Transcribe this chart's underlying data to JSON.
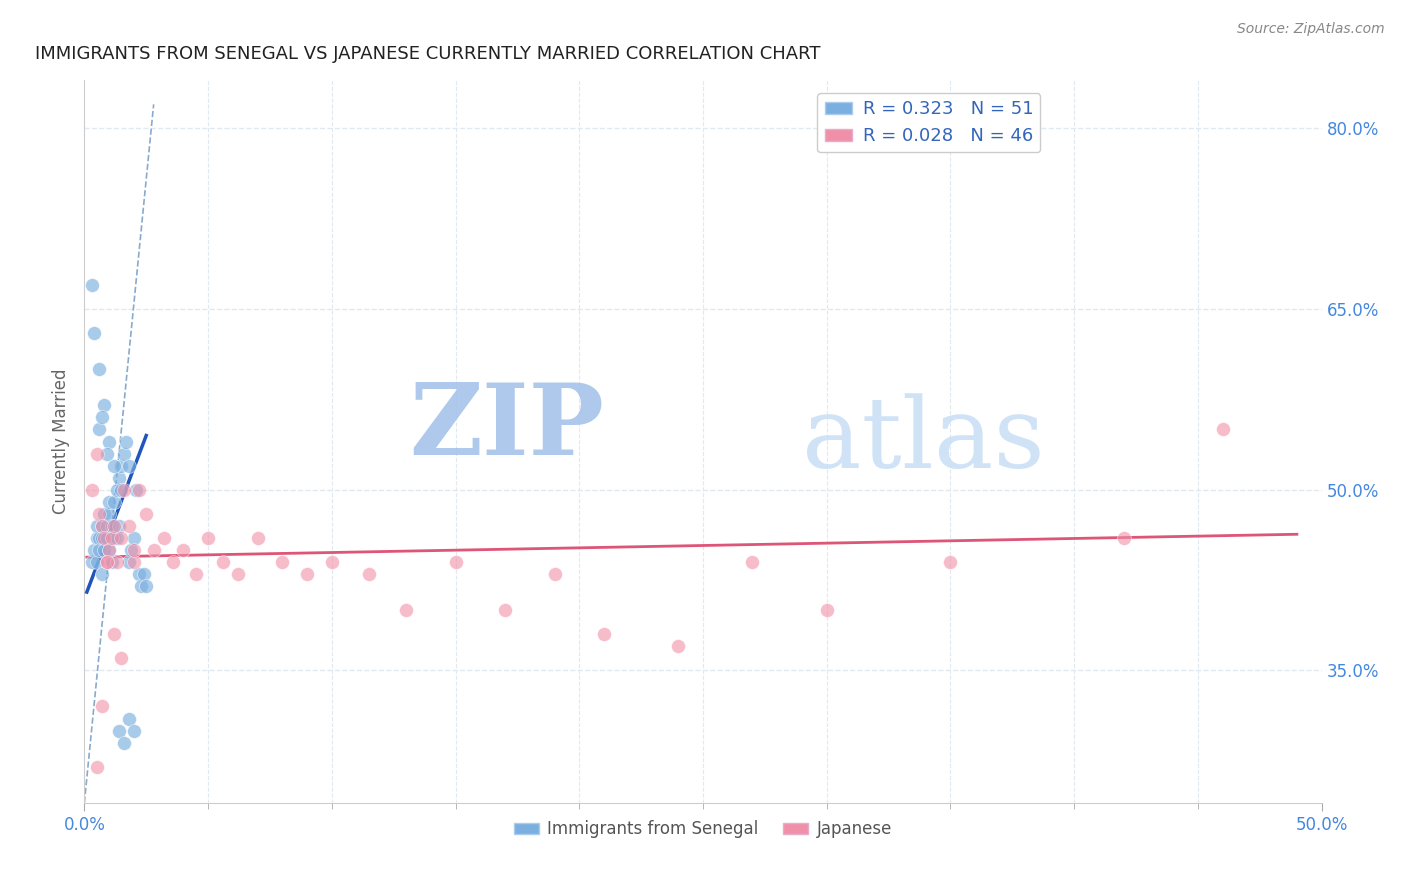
{
  "title": "IMMIGRANTS FROM SENEGAL VS JAPANESE CURRENTLY MARRIED CORRELATION CHART",
  "source_text": "Source: ZipAtlas.com",
  "ylabel": "Currently Married",
  "xlim": [
    0.0,
    0.5
  ],
  "ylim": [
    0.24,
    0.84
  ],
  "xticks_minor": [
    0.05,
    0.1,
    0.15,
    0.2,
    0.25,
    0.3,
    0.35,
    0.4,
    0.45
  ],
  "xticks_labeled": [
    0.0,
    0.5
  ],
  "xticklabels": [
    "0.0%",
    "50.0%"
  ],
  "yticks_right": [
    0.35,
    0.5,
    0.65,
    0.8
  ],
  "yticklabels_right": [
    "35.0%",
    "50.0%",
    "65.0%",
    "80.0%"
  ],
  "legend_r1": "R = 0.323   N = 51",
  "legend_r2": "R = 0.028   N = 46",
  "watermark_zip": "ZIP",
  "watermark_atlas": "atlas",
  "watermark_color": "#c8dff5",
  "blue_scatter_x": [
    0.003,
    0.004,
    0.005,
    0.005,
    0.005,
    0.006,
    0.006,
    0.007,
    0.007,
    0.007,
    0.008,
    0.008,
    0.009,
    0.009,
    0.01,
    0.01,
    0.01,
    0.011,
    0.011,
    0.012,
    0.012,
    0.013,
    0.013,
    0.014,
    0.014,
    0.015,
    0.015,
    0.016,
    0.017,
    0.018,
    0.018,
    0.019,
    0.02,
    0.021,
    0.022,
    0.023,
    0.024,
    0.025,
    0.003,
    0.004,
    0.006,
    0.008,
    0.01,
    0.012,
    0.014,
    0.016,
    0.018,
    0.02,
    0.006,
    0.007,
    0.009
  ],
  "blue_scatter_y": [
    0.44,
    0.45,
    0.46,
    0.47,
    0.44,
    0.46,
    0.45,
    0.47,
    0.43,
    0.46,
    0.45,
    0.48,
    0.46,
    0.47,
    0.48,
    0.49,
    0.45,
    0.47,
    0.44,
    0.46,
    0.49,
    0.46,
    0.5,
    0.47,
    0.51,
    0.5,
    0.52,
    0.53,
    0.54,
    0.52,
    0.44,
    0.45,
    0.46,
    0.5,
    0.43,
    0.42,
    0.43,
    0.42,
    0.67,
    0.63,
    0.6,
    0.57,
    0.54,
    0.52,
    0.3,
    0.29,
    0.31,
    0.3,
    0.55,
    0.56,
    0.53
  ],
  "pink_scatter_x": [
    0.003,
    0.005,
    0.006,
    0.007,
    0.008,
    0.009,
    0.01,
    0.011,
    0.012,
    0.013,
    0.015,
    0.016,
    0.018,
    0.02,
    0.022,
    0.025,
    0.028,
    0.032,
    0.036,
    0.04,
    0.045,
    0.05,
    0.056,
    0.062,
    0.07,
    0.08,
    0.09,
    0.1,
    0.115,
    0.13,
    0.15,
    0.17,
    0.19,
    0.21,
    0.24,
    0.27,
    0.3,
    0.35,
    0.42,
    0.46,
    0.005,
    0.007,
    0.009,
    0.012,
    0.015,
    0.02
  ],
  "pink_scatter_y": [
    0.5,
    0.53,
    0.48,
    0.47,
    0.46,
    0.44,
    0.45,
    0.46,
    0.47,
    0.44,
    0.46,
    0.5,
    0.47,
    0.44,
    0.5,
    0.48,
    0.45,
    0.46,
    0.44,
    0.45,
    0.43,
    0.46,
    0.44,
    0.43,
    0.46,
    0.44,
    0.43,
    0.44,
    0.43,
    0.4,
    0.44,
    0.4,
    0.43,
    0.38,
    0.37,
    0.44,
    0.4,
    0.44,
    0.46,
    0.55,
    0.27,
    0.32,
    0.44,
    0.38,
    0.36,
    0.45
  ],
  "blue_line_x": [
    0.001,
    0.025
  ],
  "blue_line_y": [
    0.415,
    0.545
  ],
  "pink_line_x": [
    0.001,
    0.49
  ],
  "pink_line_y": [
    0.444,
    0.463
  ],
  "dashed_line_x": [
    0.0,
    0.028
  ],
  "dashed_line_y": [
    0.24,
    0.82
  ],
  "blue_color": "#7aafe0",
  "pink_color": "#f090a8",
  "blue_line_color": "#2255bb",
  "pink_line_color": "#dd5577",
  "dashed_color": "#88aacc",
  "grid_color": "#e0e8f0",
  "title_color": "#222222",
  "right_tick_color": "#4488dd",
  "bg_color": "#ffffff",
  "bottom_legend_labels": [
    "Immigrants from Senegal",
    "Japanese"
  ]
}
